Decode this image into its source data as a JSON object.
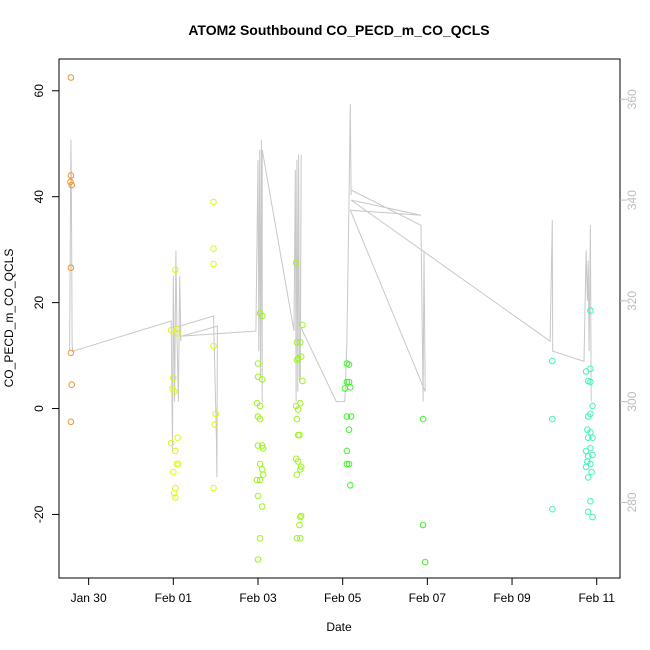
{
  "chart_data": {
    "type": "scatter",
    "title": "ATOM2 Southbound CO_PECD_m_CO_QCLS",
    "xlabel": "Date",
    "ylabel": "CO_PECD_m_CO_QCLS",
    "x_unit": "days (Feb 01 = 0)",
    "xlim": [
      -2.7,
      10.55
    ],
    "ylim": [
      -32.0,
      66.0
    ],
    "y2lim": [
      265.0,
      368.0
    ],
    "x_ticks": [
      {
        "value": -2,
        "label": "Jan 30"
      },
      {
        "value": 0,
        "label": "Feb 01"
      },
      {
        "value": 2,
        "label": "Feb 03"
      },
      {
        "value": 4,
        "label": "Feb 05"
      },
      {
        "value": 6,
        "label": "Feb 07"
      },
      {
        "value": 8,
        "label": "Feb 09"
      },
      {
        "value": 10,
        "label": "Feb 11"
      }
    ],
    "y_ticks": [
      {
        "value": -20,
        "label": "-20"
      },
      {
        "value": 0,
        "label": "0"
      },
      {
        "value": 20,
        "label": "20"
      },
      {
        "value": 40,
        "label": "40"
      },
      {
        "value": 60,
        "label": "60"
      }
    ],
    "y2_ticks": [
      {
        "value": 280,
        "label": "280"
      },
      {
        "value": 300,
        "label": "300"
      },
      {
        "value": 320,
        "label": "320"
      },
      {
        "value": 340,
        "label": "340"
      },
      {
        "value": 360,
        "label": "360"
      }
    ],
    "grid": false,
    "colors": {
      "line": "#c8c8c8",
      "axis": "#000000",
      "right_axis": "#bdbdbd"
    },
    "line_series": [
      [
        -2.45,
        310
      ],
      [
        -2.42,
        352
      ],
      [
        -2.41,
        345
      ],
      [
        -2.4,
        330
      ],
      [
        -2.39,
        312
      ],
      [
        -2.38,
        310
      ],
      [
        -0.05,
        316
      ],
      [
        -0.02,
        290
      ],
      [
        0.0,
        325
      ],
      [
        0.03,
        300
      ],
      [
        0.06,
        330
      ],
      [
        0.09,
        312
      ],
      [
        0.12,
        300
      ],
      [
        0.15,
        325
      ],
      [
        0.18,
        312
      ],
      [
        0.15,
        315
      ],
      [
        0.95,
        317
      ],
      [
        1.0,
        299
      ],
      [
        1.02,
        292
      ],
      [
        1.03,
        285
      ],
      [
        1.04,
        315
      ],
      [
        0.2,
        313
      ],
      [
        1.95,
        314
      ],
      [
        2.0,
        348
      ],
      [
        2.02,
        310
      ],
      [
        2.04,
        350
      ],
      [
        2.06,
        305
      ],
      [
        2.08,
        352
      ],
      [
        2.1,
        300
      ],
      [
        2.1,
        350
      ],
      [
        2.85,
        314
      ],
      [
        2.88,
        346
      ],
      [
        2.9,
        300
      ],
      [
        2.92,
        348
      ],
      [
        2.94,
        302
      ],
      [
        2.96,
        349
      ],
      [
        2.98,
        304
      ],
      [
        3.0,
        305
      ],
      [
        3.02,
        349
      ],
      [
        3.0,
        315
      ],
      [
        3.85,
        300
      ],
      [
        4.05,
        300
      ],
      [
        4.1,
        312
      ],
      [
        4.15,
        340
      ],
      [
        4.18,
        359
      ],
      [
        4.2,
        341
      ],
      [
        4.2,
        342
      ],
      [
        5.85,
        335
      ],
      [
        5.9,
        300
      ],
      [
        5.92,
        330
      ],
      [
        5.95,
        302
      ],
      [
        4.18,
        338
      ],
      [
        5.85,
        337
      ],
      [
        4.2,
        340
      ],
      [
        8.9,
        312
      ],
      [
        8.95,
        336
      ],
      [
        8.96,
        310
      ],
      [
        8.97,
        310
      ],
      [
        9.7,
        308
      ],
      [
        9.75,
        330
      ],
      [
        9.78,
        320
      ],
      [
        9.8,
        328
      ],
      [
        9.82,
        310
      ],
      [
        9.85,
        335
      ],
      [
        9.87,
        300
      ]
    ],
    "series": [
      {
        "color": "#f2932f",
        "points": [
          [
            -2.42,
            62.5
          ],
          [
            -2.42,
            44.0
          ],
          [
            -2.43,
            42.8
          ],
          [
            -2.4,
            42.2
          ],
          [
            -2.42,
            26.6
          ],
          [
            -2.42,
            10.5
          ],
          [
            -2.4,
            4.5
          ],
          [
            -2.42,
            -2.5
          ]
        ]
      },
      {
        "color": "#e1f518",
        "points": [
          [
            0.05,
            26.2
          ],
          [
            0.08,
            15.0
          ],
          [
            0.1,
            14.2
          ],
          [
            -0.05,
            14.8
          ],
          [
            0.0,
            5.8
          ],
          [
            -0.02,
            3.8
          ],
          [
            0.02,
            3.2
          ],
          [
            0.1,
            -5.5
          ],
          [
            -0.05,
            -6.5
          ],
          [
            0.05,
            -8.0
          ],
          [
            0.12,
            -10.5
          ],
          [
            0.08,
            -10.5
          ],
          [
            0.0,
            -12.0
          ],
          [
            0.05,
            -15.0
          ],
          [
            0.02,
            -16.0
          ],
          [
            0.05,
            -16.8
          ],
          [
            0.95,
            39.0
          ],
          [
            0.95,
            30.2
          ],
          [
            0.95,
            27.3
          ],
          [
            0.95,
            11.8
          ],
          [
            1.0,
            -1.0
          ],
          [
            0.98,
            -3.0
          ],
          [
            0.95,
            -15.0
          ]
        ]
      },
      {
        "color": "#9cf51e",
        "points": [
          [
            2.05,
            18.0
          ],
          [
            2.1,
            17.5
          ],
          [
            2.0,
            8.5
          ],
          [
            2.0,
            6.0
          ],
          [
            2.1,
            5.5
          ],
          [
            2.05,
            0.5
          ],
          [
            1.98,
            1.0
          ],
          [
            2.0,
            -1.5
          ],
          [
            2.05,
            -2.0
          ],
          [
            2.0,
            -7.0
          ],
          [
            2.1,
            -7.0
          ],
          [
            2.12,
            -7.5
          ],
          [
            2.05,
            -10.5
          ],
          [
            2.1,
            -11.5
          ],
          [
            2.12,
            -12.5
          ],
          [
            1.98,
            -13.5
          ],
          [
            2.05,
            -13.5
          ],
          [
            2.0,
            -16.5
          ],
          [
            2.1,
            -18.5
          ],
          [
            2.05,
            -24.5
          ],
          [
            2.0,
            -28.5
          ],
          [
            2.9,
            27.5
          ],
          [
            2.92,
            12.5
          ],
          [
            3.0,
            12.5
          ],
          [
            2.95,
            9.5
          ],
          [
            3.02,
            9.8
          ],
          [
            2.92,
            9.2
          ],
          [
            3.05,
            15.8
          ],
          [
            3.05,
            5.2
          ],
          [
            2.9,
            0.5
          ],
          [
            2.95,
            -0.2
          ],
          [
            3.0,
            1.0
          ],
          [
            2.92,
            -2.0
          ],
          [
            2.95,
            -5.0
          ],
          [
            2.98,
            -5.0
          ],
          [
            2.9,
            -9.5
          ],
          [
            2.95,
            -10.0
          ],
          [
            3.0,
            -11.5
          ],
          [
            3.02,
            -11.0
          ],
          [
            2.92,
            -12.5
          ],
          [
            3.0,
            -20.5
          ],
          [
            3.02,
            -20.3
          ],
          [
            2.98,
            -22.0
          ],
          [
            2.92,
            -24.5
          ],
          [
            3.0,
            -24.5
          ]
        ]
      },
      {
        "color": "#40f22a",
        "points": [
          [
            4.1,
            8.5
          ],
          [
            4.15,
            8.3
          ],
          [
            4.1,
            5.0
          ],
          [
            4.15,
            5.0
          ],
          [
            4.18,
            4.0
          ],
          [
            4.05,
            3.8
          ],
          [
            4.1,
            -1.5
          ],
          [
            4.2,
            -1.5
          ],
          [
            4.15,
            -4.0
          ],
          [
            4.1,
            -8.0
          ],
          [
            4.15,
            -10.5
          ],
          [
            4.1,
            -10.5
          ],
          [
            4.18,
            -14.5
          ],
          [
            5.9,
            -2.0
          ],
          [
            5.9,
            -22.0
          ],
          [
            5.95,
            -29.0
          ]
        ]
      },
      {
        "color": "#3cf5b8",
        "points": [
          [
            8.95,
            9.0
          ],
          [
            8.95,
            -2.0
          ],
          [
            8.95,
            -19.0
          ],
          [
            9.75,
            7.0
          ],
          [
            9.85,
            7.5
          ],
          [
            9.8,
            5.2
          ],
          [
            9.85,
            5.0
          ],
          [
            9.9,
            0.5
          ],
          [
            9.85,
            -1.0
          ],
          [
            9.8,
            -1.5
          ],
          [
            9.78,
            -4.0
          ],
          [
            9.85,
            -4.5
          ],
          [
            9.8,
            -5.5
          ],
          [
            9.9,
            -5.5
          ],
          [
            9.85,
            -7.5
          ],
          [
            9.75,
            -8.0
          ],
          [
            9.8,
            -9.0
          ],
          [
            9.9,
            -8.8
          ],
          [
            9.78,
            -10.0
          ],
          [
            9.85,
            -10.5
          ],
          [
            9.75,
            -11.0
          ],
          [
            9.88,
            -12.0
          ],
          [
            9.8,
            -13.0
          ],
          [
            9.85,
            -17.5
          ],
          [
            9.8,
            -19.5
          ],
          [
            9.9,
            -20.5
          ],
          [
            9.85,
            18.5
          ]
        ]
      }
    ]
  }
}
